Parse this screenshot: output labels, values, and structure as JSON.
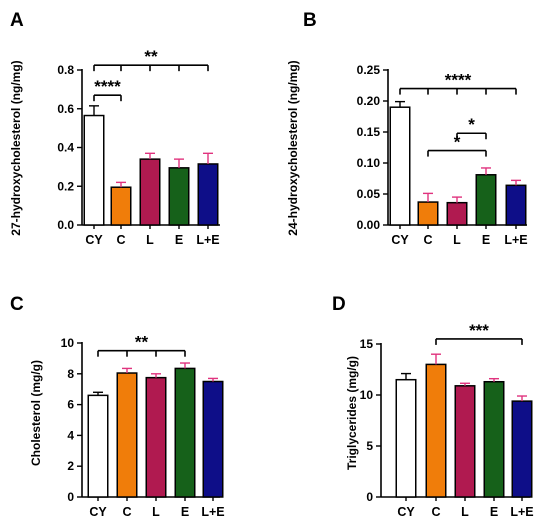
{
  "chart_data": [
    {
      "panel": "A",
      "type": "bar",
      "ylabel": "27-hydroxycholesterol (ng/mg)",
      "categories": [
        "CY",
        "C",
        "L",
        "E",
        "L+E"
      ],
      "values": [
        0.565,
        0.195,
        0.34,
        0.295,
        0.315
      ],
      "errors": [
        0.05,
        0.025,
        0.03,
        0.045,
        0.055
      ],
      "colors": [
        "#ffffff",
        "#f07d0a",
        "#b01a50",
        "#16611a",
        "#0e0e88"
      ],
      "error_colors": [
        "#000000",
        "#e0337e",
        "#e0337e",
        "#e0337e",
        "#e0337e"
      ],
      "ylim": [
        0,
        0.8
      ],
      "yticks": [
        "0.0",
        "0.2",
        "0.4",
        "0.6",
        "0.8"
      ],
      "significance": [
        {
          "from": 0,
          "to": [
            1
          ],
          "y": 0.67,
          "label": "****"
        },
        {
          "from": 0,
          "to": [
            1,
            2,
            3,
            4
          ],
          "y": 0.825,
          "label": "**"
        }
      ]
    },
    {
      "panel": "B",
      "type": "bar",
      "ylabel": "24-hydroxycholesterol (ng/mg)",
      "categories": [
        "CY",
        "C",
        "L",
        "E",
        "L+E"
      ],
      "values": [
        0.19,
        0.037,
        0.036,
        0.081,
        0.064
      ],
      "errors": [
        0.009,
        0.014,
        0.009,
        0.011,
        0.008
      ],
      "colors": [
        "#ffffff",
        "#f07d0a",
        "#b01a50",
        "#16611a",
        "#0e0e88"
      ],
      "error_colors": [
        "#000000",
        "#e0337e",
        "#e0337e",
        "#e0337e",
        "#e0337e"
      ],
      "ylim": [
        0,
        0.25
      ],
      "yticks": [
        "0.00",
        "0.05",
        "0.10",
        "0.15",
        "0.20",
        "0.25"
      ],
      "significance": [
        {
          "from": 0,
          "to": [
            1,
            2,
            3,
            4
          ],
          "y": 0.22,
          "label": "****"
        },
        {
          "from": 2,
          "to": [
            3
          ],
          "y": 0.148,
          "label": "*"
        },
        {
          "from": 1,
          "to": [
            3
          ],
          "y": 0.12,
          "label": "*"
        }
      ]
    },
    {
      "panel": "C",
      "type": "bar",
      "ylabel": "Cholesterol (mg/g)",
      "categories": [
        "CY",
        "C",
        "L",
        "E",
        "L+E"
      ],
      "values": [
        6.6,
        8.05,
        7.75,
        8.35,
        7.5
      ],
      "errors": [
        0.2,
        0.3,
        0.25,
        0.35,
        0.2
      ],
      "colors": [
        "#ffffff",
        "#f07d0a",
        "#b01a50",
        "#16611a",
        "#0e0e88"
      ],
      "error_colors": [
        "#000000",
        "#e0337e",
        "#e0337e",
        "#e0337e",
        "#e0337e"
      ],
      "ylim": [
        0,
        10
      ],
      "yticks": [
        "0",
        "2",
        "4",
        "6",
        "8",
        "10"
      ],
      "significance": [
        {
          "from": 0,
          "to": [
            1,
            2,
            3
          ],
          "y": 9.5,
          "label": "**"
        }
      ]
    },
    {
      "panel": "D",
      "type": "bar",
      "ylabel": "Triglycerides (mg/g)",
      "categories": [
        "CY",
        "C",
        "L",
        "E",
        "L+E"
      ],
      "values": [
        11.5,
        13.0,
        10.9,
        11.3,
        9.4
      ],
      "errors": [
        0.6,
        1.0,
        0.25,
        0.3,
        0.5
      ],
      "colors": [
        "#ffffff",
        "#f07d0a",
        "#b01a50",
        "#16611a",
        "#0e0e88"
      ],
      "error_colors": [
        "#000000",
        "#e0337e",
        "#e0337e",
        "#e0337e",
        "#e0337e"
      ],
      "ylim": [
        0,
        15
      ],
      "yticks": [
        "0",
        "5",
        "10",
        "15"
      ],
      "significance": [
        {
          "from": 1,
          "to": [
            4
          ],
          "y": 15.5,
          "label": "***"
        }
      ]
    }
  ]
}
